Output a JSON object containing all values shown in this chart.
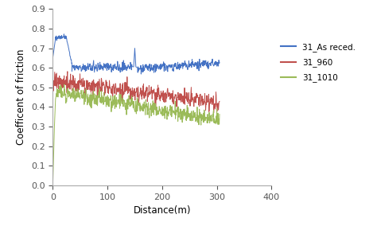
{
  "title": "",
  "xlabel": "Distance(m)",
  "ylabel": "Coefficent of friction",
  "xlim": [
    0,
    400
  ],
  "ylim": [
    0,
    0.9
  ],
  "xticks": [
    0,
    100,
    200,
    300,
    400
  ],
  "yticks": [
    0,
    0.1,
    0.2,
    0.3,
    0.4,
    0.5,
    0.6,
    0.7,
    0.8,
    0.9
  ],
  "legend_labels": [
    "31_As reced.",
    "31_960",
    "31_1010"
  ],
  "line_colors": [
    "#4472C4",
    "#C0504D",
    "#9BBB59"
  ],
  "background_color": "#ffffff",
  "noise_seed": 42,
  "figsize": [
    4.74,
    2.84
  ],
  "dpi": 100
}
